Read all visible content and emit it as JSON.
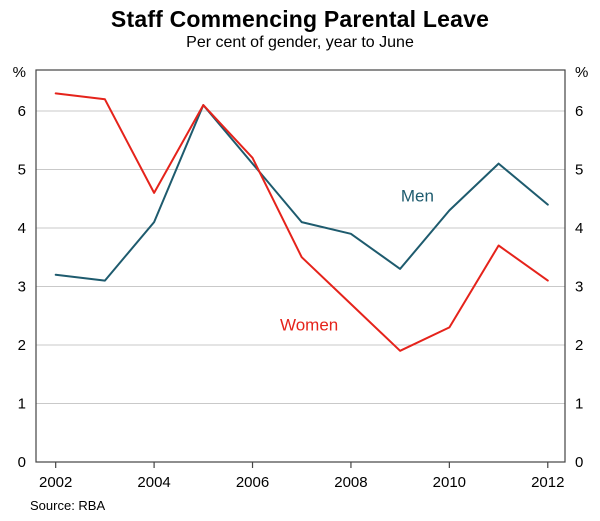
{
  "chart_data": {
    "type": "line",
    "title": "Staff Commencing Parental Leave",
    "subtitle": "Per cent of gender, year to June",
    "unit": "%",
    "x": [
      2002,
      2003,
      2004,
      2005,
      2006,
      2007,
      2008,
      2009,
      2010,
      2011,
      2012
    ],
    "series": [
      {
        "name": "Men",
        "color": "#1e5b6e",
        "values": [
          3.2,
          3.1,
          4.1,
          6.1,
          5.1,
          4.1,
          3.9,
          3.3,
          4.3,
          5.1,
          4.4
        ]
      },
      {
        "name": "Women",
        "color": "#e5231b",
        "values": [
          6.3,
          6.2,
          4.6,
          6.1,
          5.2,
          3.5,
          2.7,
          1.9,
          2.3,
          3.7,
          3.1
        ]
      }
    ],
    "xlim": [
      2001.6,
      2012.35
    ],
    "ylim": [
      0,
      6.7
    ],
    "yticks": [
      0,
      1,
      2,
      3,
      4,
      5,
      6
    ],
    "xticks": [
      2002,
      2004,
      2006,
      2008,
      2010,
      2012
    ],
    "grid": true,
    "legend_position": "inline-labels",
    "annotations": [
      {
        "text": "Men",
        "x": 2009.35,
        "y": 4.45,
        "color": "#1e5b6e"
      },
      {
        "text": "Women",
        "x": 2007.15,
        "y": 2.25,
        "color": "#e5231b"
      }
    ],
    "source": "Source: RBA"
  },
  "colors": {
    "grid": "#c9c9c9",
    "axis": "#444444"
  }
}
